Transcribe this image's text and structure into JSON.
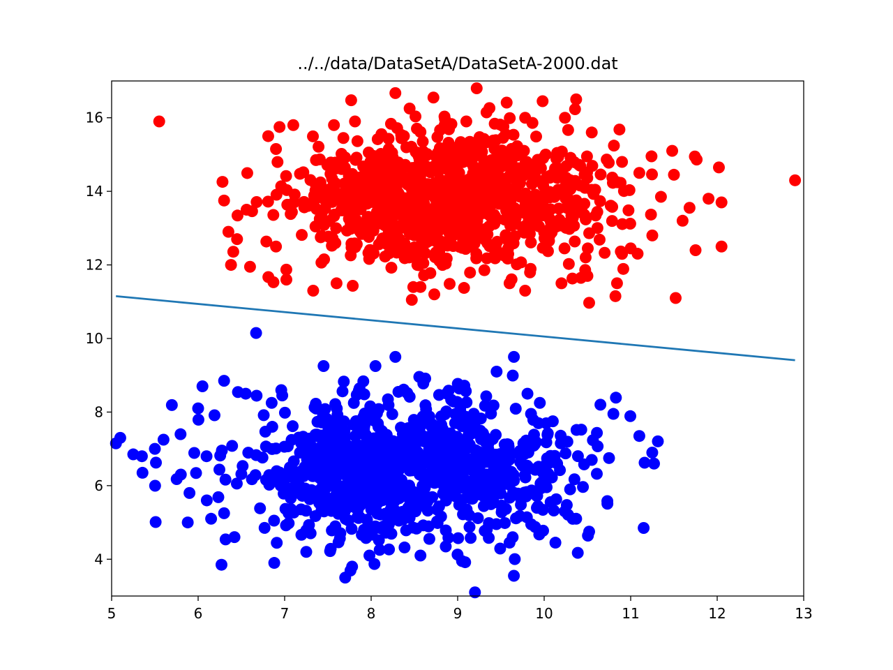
{
  "chart_data": {
    "type": "scatter",
    "title": "../../data/DataSetA/DataSetA-2000.dat",
    "xlim": [
      5,
      13
    ],
    "ylim": [
      3,
      17
    ],
    "xticks": [
      {
        "value": 5,
        "label": "5"
      },
      {
        "value": 6,
        "label": "6"
      },
      {
        "value": 7,
        "label": "7"
      },
      {
        "value": 8,
        "label": "8"
      },
      {
        "value": 9,
        "label": "9"
      },
      {
        "value": 10,
        "label": "10"
      },
      {
        "value": 11,
        "label": "11"
      },
      {
        "value": 12,
        "label": "12"
      },
      {
        "value": 13,
        "label": "13"
      }
    ],
    "yticks": [
      {
        "value": 4,
        "label": "4"
      },
      {
        "value": 6,
        "label": "6"
      },
      {
        "value": 8,
        "label": "8"
      },
      {
        "value": 10,
        "label": "10"
      },
      {
        "value": 12,
        "label": "12"
      },
      {
        "value": 14,
        "label": "14"
      },
      {
        "value": 16,
        "label": "16"
      }
    ],
    "grid": false,
    "series": [
      {
        "color": "#ff0000",
        "distribution": {
          "count": 1000,
          "mean": [
            8.9,
            13.8
          ],
          "std": [
            0.95,
            0.95
          ]
        },
        "points": [
          [
            5.55,
            15.9
          ],
          [
            9.22,
            16.8
          ],
          [
            8.28,
            16.67
          ],
          [
            8.72,
            16.55
          ],
          [
            10.37,
            16.5
          ],
          [
            12.9,
            14.3
          ],
          [
            11.52,
            11.1
          ],
          [
            8.47,
            11.05
          ],
          [
            10.52,
            10.97
          ],
          [
            9.78,
            11.3
          ],
          [
            6.81,
            15.5
          ],
          [
            6.38,
            12.0
          ],
          [
            6.3,
            13.75
          ],
          [
            6.6,
            11.95
          ],
          [
            6.56,
            13.5
          ],
          [
            12.05,
            12.5
          ],
          [
            11.75,
            12.4
          ],
          [
            12.05,
            13.7
          ],
          [
            12.02,
            14.65
          ],
          [
            11.9,
            13.8
          ],
          [
            11.6,
            13.2
          ],
          [
            11.48,
            15.1
          ],
          [
            11.5,
            14.45
          ],
          [
            10.87,
            15.68
          ],
          [
            7.1,
            15.8
          ],
          [
            7.02,
            11.6
          ],
          [
            7.33,
            11.3
          ],
          [
            7.6,
            11.5
          ],
          [
            8.57,
            11.4
          ],
          [
            8.73,
            11.2
          ],
          [
            9.6,
            11.5
          ],
          [
            10.5,
            11.7
          ],
          [
            10.2,
            11.5
          ],
          [
            9.1,
            15.9
          ],
          [
            9.78,
            16.0
          ],
          [
            10.24,
            16.0
          ],
          [
            6.9,
            12.5
          ],
          [
            11.25,
            12.8
          ],
          [
            10.9,
            12.3
          ],
          [
            11.35,
            13.85
          ],
          [
            6.35,
            12.9
          ],
          [
            6.45,
            12.7
          ],
          [
            6.9,
            15.15
          ],
          [
            11.1,
            14.5
          ],
          [
            10.9,
            14.8
          ],
          [
            7.57,
            15.8
          ],
          [
            10.55,
            15.6
          ],
          [
            11.0,
            12.45
          ]
        ]
      },
      {
        "color": "#0000ff",
        "distribution": {
          "count": 1000,
          "mean": [
            8.4,
            6.5
          ],
          "std": [
            0.95,
            0.95
          ]
        },
        "points": [
          [
            6.67,
            10.15
          ],
          [
            8.28,
            9.5
          ],
          [
            9.65,
            9.5
          ],
          [
            7.45,
            9.25
          ],
          [
            8.05,
            9.25
          ],
          [
            9.45,
            9.1
          ],
          [
            9.2,
            3.1
          ],
          [
            7.7,
            3.5
          ],
          [
            9.65,
            3.55
          ],
          [
            6.27,
            3.85
          ],
          [
            6.88,
            3.9
          ],
          [
            5.05,
            7.15
          ],
          [
            5.1,
            7.3
          ],
          [
            5.25,
            6.85
          ],
          [
            5.35,
            6.8
          ],
          [
            11.27,
            6.6
          ],
          [
            11.1,
            7.35
          ],
          [
            11.15,
            4.85
          ],
          [
            10.8,
            7.95
          ],
          [
            10.65,
            8.2
          ],
          [
            10.75,
            6.75
          ],
          [
            10.55,
            6.7
          ],
          [
            10.52,
            4.75
          ],
          [
            10.37,
            5.1
          ],
          [
            5.88,
            5.0
          ],
          [
            6.42,
            4.6
          ],
          [
            9.05,
            3.95
          ],
          [
            7.98,
            4.1
          ],
          [
            8.57,
            4.1
          ],
          [
            7.25,
            4.2
          ],
          [
            6.3,
            8.85
          ],
          [
            6.05,
            8.7
          ],
          [
            6.0,
            8.1
          ],
          [
            10.13,
            4.45
          ],
          [
            9.6,
            4.45
          ],
          [
            5.5,
            7.0
          ],
          [
            5.6,
            7.25
          ],
          [
            5.8,
            6.3
          ],
          [
            5.9,
            5.8
          ],
          [
            6.1,
            5.6
          ],
          [
            6.15,
            5.1
          ],
          [
            6.3,
            5.25
          ],
          [
            6.55,
            8.5
          ],
          [
            6.85,
            8.25
          ],
          [
            9.95,
            8.25
          ],
          [
            10.1,
            7.75
          ],
          [
            10.15,
            6.6
          ],
          [
            10.3,
            5.9
          ]
        ]
      }
    ],
    "lines": [
      {
        "color": "#1f77b4",
        "points": [
          [
            5.05,
            11.15
          ],
          [
            12.9,
            9.41
          ]
        ]
      }
    ]
  }
}
